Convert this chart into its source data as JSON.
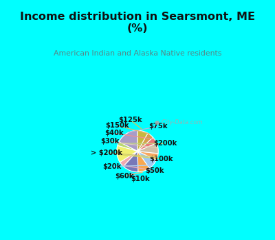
{
  "title": "Income distribution in Searsmont, ME\n(%)",
  "subtitle": "American Indian and Alaska Native residents",
  "title_color": "#111111",
  "subtitle_color": "#558888",
  "bg_cyan": "#00ffff",
  "bg_chart": "#dff0e8",
  "labels": [
    "$75k",
    "$200k",
    "$100k",
    "$50k",
    "$10k",
    "$60k",
    "$20k",
    "> $200k",
    "$30k",
    "$40k",
    "$150k",
    "$125k"
  ],
  "values": [
    17,
    3,
    13,
    4,
    12,
    9,
    8,
    5,
    8,
    5,
    5,
    8
  ],
  "colors": [
    "#a89cc8",
    "#b8d870",
    "#f0f070",
    "#f0a8b0",
    "#7878b8",
    "#f8a850",
    "#a0c8f0",
    "#f8a860",
    "#d0c0a8",
    "#e87878",
    "#d4a050",
    "#c8b840"
  ],
  "wedge_edge_color": "white",
  "wedge_lw": 0.8
}
